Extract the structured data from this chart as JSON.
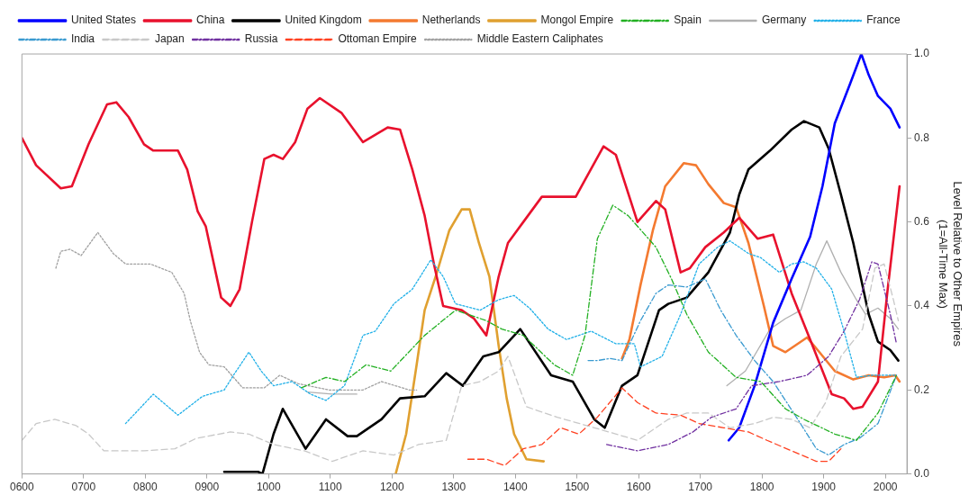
{
  "chart_data": {
    "type": "line",
    "ylabel": "Level Relative to Other Empires\n(1=All-Time Max)",
    "legend": "top",
    "grid": false,
    "xlim": [
      600,
      2035
    ],
    "xticks": [
      {
        "value": 600,
        "label": "0600"
      },
      {
        "value": 700,
        "label": "0700"
      },
      {
        "value": 800,
        "label": "0800"
      },
      {
        "value": 900,
        "label": "0900"
      },
      {
        "value": 1000,
        "label": "1000"
      },
      {
        "value": 1100,
        "label": "1100"
      },
      {
        "value": 1200,
        "label": "1200"
      },
      {
        "value": 1300,
        "label": "1300"
      },
      {
        "value": 1400,
        "label": "1400"
      },
      {
        "value": 1500,
        "label": "1500"
      },
      {
        "value": 1600,
        "label": "1600"
      },
      {
        "value": 1700,
        "label": "1700"
      },
      {
        "value": 1800,
        "label": "1800"
      },
      {
        "value": 1900,
        "label": "1900"
      },
      {
        "value": 2000,
        "label": "2000"
      }
    ],
    "ylim": [
      0,
      1
    ],
    "yticks": [
      {
        "value": 0,
        "label": "0.0"
      },
      {
        "value": 0.2,
        "label": "0.2"
      },
      {
        "value": 0.4,
        "label": "0.4"
      },
      {
        "value": 0.6,
        "label": "0.6"
      },
      {
        "value": 0.8,
        "label": "0.8"
      },
      {
        "value": 1,
        "label": "1.0"
      }
    ],
    "series": [
      {
        "name": "United States",
        "color": "#0000ff",
        "line_style": "solid",
        "x": [
          1746,
          1763,
          1788,
          1818,
          1848,
          1878,
          1898,
          1918,
          1943,
          1961,
          1973,
          1988,
          2008,
          2023
        ],
        "values": [
          0.08,
          0.11,
          0.21,
          0.36,
          0.465,
          0.565,
          0.685,
          0.835,
          0.93,
          1.0,
          0.95,
          0.9,
          0.87,
          0.825
        ]
      },
      {
        "name": "China",
        "color": "#e8112d",
        "line_style": "solid",
        "x": [
          600,
          623,
          663,
          681,
          708,
          738,
          753,
          773,
          798,
          813,
          853,
          868,
          885,
          898,
          923,
          938,
          953,
          973,
          993,
          1008,
          1023,
          1043,
          1063,
          1083,
          1118,
          1153,
          1193,
          1213,
          1233,
          1253,
          1268,
          1283,
          1313,
          1333,
          1353,
          1373,
          1388,
          1413,
          1443,
          1498,
          1513,
          1543,
          1563,
          1598,
          1628,
          1643,
          1668,
          1683,
          1708,
          1738,
          1763,
          1793,
          1818,
          1848,
          1878,
          1913,
          1933,
          1948,
          1963,
          1988,
          2003,
          2023
        ],
        "values": [
          0.8,
          0.735,
          0.68,
          0.685,
          0.785,
          0.88,
          0.885,
          0.85,
          0.785,
          0.77,
          0.77,
          0.725,
          0.625,
          0.59,
          0.42,
          0.4,
          0.44,
          0.6,
          0.75,
          0.76,
          0.75,
          0.79,
          0.87,
          0.895,
          0.86,
          0.79,
          0.825,
          0.82,
          0.725,
          0.615,
          0.5,
          0.4,
          0.39,
          0.37,
          0.33,
          0.47,
          0.55,
          0.6,
          0.66,
          0.66,
          0.7,
          0.78,
          0.76,
          0.6,
          0.65,
          0.63,
          0.48,
          0.49,
          0.54,
          0.575,
          0.61,
          0.56,
          0.57,
          0.43,
          0.32,
          0.19,
          0.18,
          0.155,
          0.16,
          0.22,
          0.43,
          0.685
        ]
      },
      {
        "name": "United Kingdom",
        "color": "#000000",
        "line_style": "solid",
        "x": [
          928,
          983,
          990,
          1008,
          1023,
          1060,
          1093,
          1128,
          1143,
          1183,
          1213,
          1253,
          1288,
          1315,
          1348,
          1373,
          1408,
          1458,
          1493,
          1528,
          1545,
          1573,
          1598,
          1633,
          1648,
          1678,
          1713,
          1748,
          1763,
          1778,
          1813,
          1848,
          1868,
          1893,
          1908,
          1928,
          1948,
          1973,
          1988,
          2008,
          2021
        ],
        "values": [
          0.005,
          0.005,
          0.0,
          0.095,
          0.155,
          0.06,
          0.13,
          0.09,
          0.09,
          0.13,
          0.18,
          0.185,
          0.24,
          0.21,
          0.28,
          0.29,
          0.345,
          0.235,
          0.22,
          0.13,
          0.11,
          0.21,
          0.235,
          0.39,
          0.405,
          0.42,
          0.48,
          0.575,
          0.665,
          0.725,
          0.77,
          0.82,
          0.84,
          0.825,
          0.775,
          0.665,
          0.55,
          0.38,
          0.315,
          0.295,
          0.27
        ]
      },
      {
        "name": "Netherlands",
        "color": "#f47a30",
        "line_style": "solid",
        "x": [
          1573,
          1585,
          1603,
          1623,
          1643,
          1673,
          1693,
          1713,
          1738,
          1758,
          1778,
          1803,
          1818,
          1838,
          1873,
          1893,
          1918,
          1948,
          1973,
          1998,
          2016,
          2023
        ],
        "values": [
          0.275,
          0.32,
          0.45,
          0.58,
          0.685,
          0.74,
          0.735,
          0.69,
          0.645,
          0.635,
          0.55,
          0.4,
          0.305,
          0.29,
          0.325,
          0.29,
          0.245,
          0.225,
          0.235,
          0.23,
          0.235,
          0.22
        ]
      },
      {
        "name": "Mongol Empire",
        "color": "#e0a030",
        "line_style": "solid",
        "x": [
          1206,
          1223,
          1240,
          1253,
          1273,
          1293,
          1313,
          1326,
          1341,
          1358,
          1373,
          1386,
          1398,
          1418,
          1446
        ],
        "values": [
          0.0,
          0.095,
          0.26,
          0.39,
          0.48,
          0.58,
          0.63,
          0.63,
          0.55,
          0.47,
          0.305,
          0.18,
          0.095,
          0.035,
          0.03
        ]
      },
      {
        "name": "Spain",
        "color": "#22b022",
        "line_style": "dashdot",
        "x": [
          1053,
          1093,
          1123,
          1158,
          1198,
          1253,
          1303,
          1353,
          1378,
          1413,
          1463,
          1493,
          1513,
          1533,
          1558,
          1583,
          1628,
          1653,
          1678,
          1713,
          1758,
          1798,
          1838,
          1868,
          1918,
          1953,
          1988,
          2018
        ],
        "values": [
          0.205,
          0.23,
          0.22,
          0.26,
          0.245,
          0.33,
          0.39,
          0.365,
          0.345,
          0.33,
          0.26,
          0.235,
          0.33,
          0.56,
          0.64,
          0.615,
          0.54,
          0.465,
          0.38,
          0.29,
          0.23,
          0.22,
          0.155,
          0.13,
          0.095,
          0.08,
          0.145,
          0.235
        ]
      },
      {
        "name": "Germany",
        "color": "#b0b0b0",
        "line_style": "solid",
        "x": [
          1063,
          1103,
          1143,
          1200,
          1743,
          1773,
          1813,
          1838,
          1863,
          1888,
          1905,
          1928,
          1953,
          1968,
          1988,
          2008,
          2021
        ],
        "values": [
          0.195,
          0.19,
          0.19,
          null,
          0.21,
          0.245,
          0.345,
          0.37,
          0.39,
          0.5,
          0.555,
          0.48,
          0.415,
          0.38,
          0.395,
          0.37,
          0.345
        ]
      },
      {
        "name": "France",
        "color": "#20b0e8",
        "line_style": "dotted",
        "x": [
          768,
          813,
          853,
          893,
          928,
          943,
          968,
          988,
          1008,
          1038,
          1068,
          1093,
          1123,
          1153,
          1173,
          1203,
          1233,
          1263,
          1283,
          1303,
          1343,
          1373,
          1398,
          1423,
          1453,
          1483,
          1523,
          1563,
          1593,
          1603,
          1638,
          1668,
          1698,
          1728,
          1748,
          1778,
          1798,
          1828,
          1848,
          1868,
          1888,
          1913,
          1933,
          1953,
          1978,
          2018
        ],
        "values": [
          0.12,
          0.19,
          0.14,
          0.185,
          0.2,
          0.235,
          0.29,
          0.245,
          0.21,
          0.22,
          0.19,
          0.175,
          0.21,
          0.33,
          0.34,
          0.405,
          0.44,
          0.51,
          0.47,
          0.405,
          0.39,
          0.415,
          0.425,
          0.395,
          0.345,
          0.32,
          0.34,
          0.31,
          0.31,
          0.255,
          0.28,
          0.38,
          0.5,
          0.54,
          0.555,
          0.525,
          0.515,
          0.48,
          0.5,
          0.505,
          0.49,
          0.44,
          0.34,
          0.23,
          0.235,
          0.235
        ]
      },
      {
        "name": "India",
        "color": "#3a9ad0",
        "line_style": "dashdot",
        "x": [
          1518,
          1533,
          1553,
          1573,
          1603,
          1628,
          1648,
          1678,
          1708,
          1733,
          1758,
          1788,
          1818,
          1858,
          1888,
          1908,
          1933,
          1958,
          1988,
          2018
        ],
        "values": [
          0.27,
          0.27,
          0.275,
          0.27,
          0.365,
          0.43,
          0.45,
          0.445,
          0.465,
          0.39,
          0.33,
          0.27,
          0.22,
          0.13,
          0.06,
          0.045,
          0.07,
          0.085,
          0.12,
          0.235
        ]
      },
      {
        "name": "Japan",
        "color": "#c8c8c8",
        "line_style": "dashed",
        "x": [
          600,
          623,
          653,
          688,
          708,
          733,
          773,
          798,
          848,
          883,
          938,
          968,
          1008,
          1058,
          1103,
          1153,
          1203,
          1243,
          1288,
          1313,
          1343,
          1373,
          1388,
          1403,
          1418,
          1468,
          1528,
          1598,
          1648,
          1678,
          1713,
          1748,
          1788,
          1818,
          1848,
          1878,
          1903,
          1928,
          1963,
          1983,
          1998,
          2013,
          2021
        ],
        "values": [
          0.08,
          0.12,
          0.13,
          0.115,
          0.095,
          0.055,
          0.055,
          0.055,
          0.06,
          0.085,
          0.1,
          0.095,
          0.07,
          0.055,
          0.03,
          0.055,
          0.045,
          0.07,
          0.08,
          0.21,
          0.22,
          0.245,
          0.28,
          0.22,
          0.16,
          0.135,
          0.11,
          0.08,
          0.13,
          0.145,
          0.145,
          0.11,
          0.12,
          0.135,
          0.13,
          0.11,
          0.17,
          0.28,
          0.345,
          0.49,
          0.5,
          0.415,
          0.365
        ]
      },
      {
        "name": "Russia",
        "color": "#7030a0",
        "line_style": "dashdot",
        "x": [
          1548,
          1598,
          1648,
          1688,
          1718,
          1758,
          1783,
          1828,
          1873,
          1908,
          1933,
          1958,
          1978,
          1988,
          2008,
          2018
        ],
        "values": [
          0.07,
          0.055,
          0.07,
          0.1,
          0.135,
          0.155,
          0.21,
          0.22,
          0.235,
          0.28,
          0.34,
          0.415,
          0.505,
          0.5,
          0.38,
          0.31
        ]
      },
      {
        "name": "Ottoman Empire",
        "color": "#ff4020",
        "line_style": "dashed",
        "x": [
          1323,
          1353,
          1383,
          1413,
          1443,
          1473,
          1503,
          1533,
          1573,
          1598,
          1628,
          1668,
          1698,
          1738,
          1778,
          1808,
          1848,
          1888,
          1908,
          1928
        ],
        "values": [
          0.035,
          0.035,
          0.02,
          0.06,
          0.07,
          0.11,
          0.095,
          0.135,
          0.205,
          0.17,
          0.145,
          0.14,
          0.12,
          0.11,
          0.1,
          0.08,
          0.055,
          0.03,
          0.03,
          0.06
        ]
      },
      {
        "name": "Middle Eastern Caliphates",
        "color": "#a0a0a0",
        "line_style": "dotted",
        "x": [
          655,
          663,
          678,
          696,
          723,
          748,
          768,
          808,
          843,
          863,
          873,
          888,
          903,
          928,
          958,
          993,
          1018,
          1048,
          1098,
          1153,
          1183,
          1228,
          1240
        ],
        "values": [
          0.49,
          0.53,
          0.535,
          0.52,
          0.575,
          0.525,
          0.5,
          0.5,
          0.48,
          0.43,
          0.365,
          0.29,
          0.26,
          0.255,
          0.205,
          0.205,
          0.235,
          0.215,
          0.2,
          0.2,
          0.22,
          0.2,
          0.2
        ]
      }
    ]
  }
}
